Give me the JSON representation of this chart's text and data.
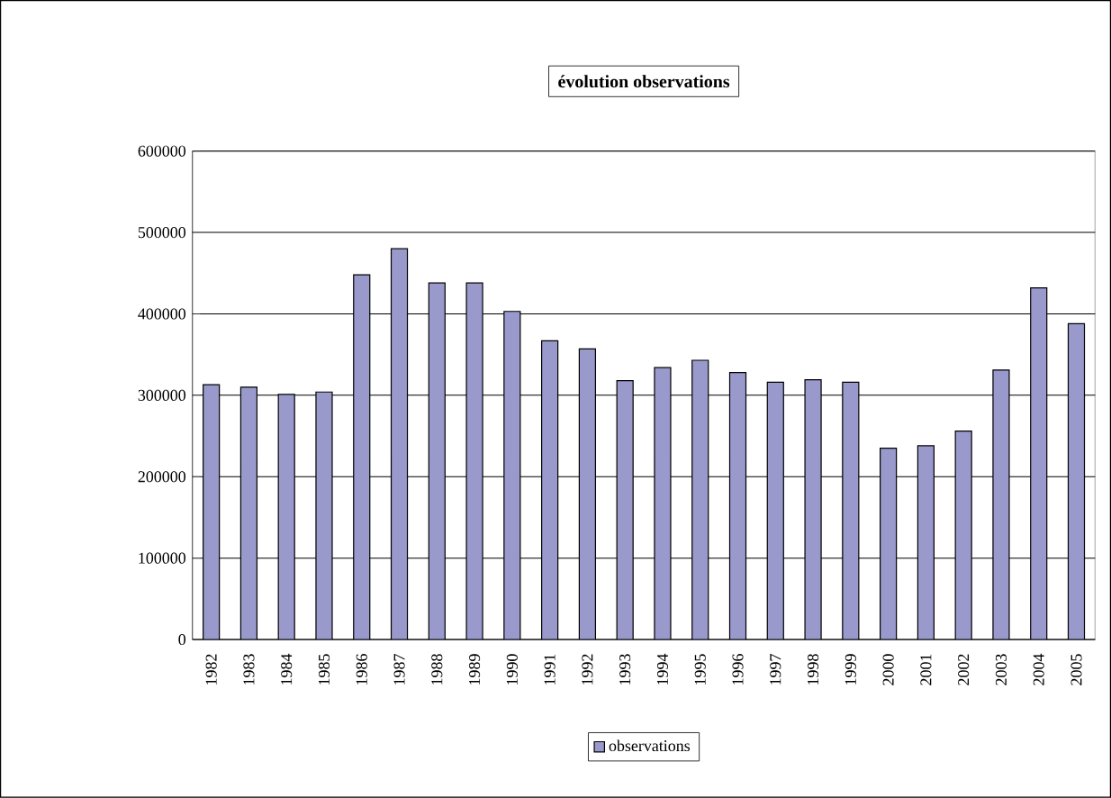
{
  "chart_data": {
    "type": "bar",
    "title": "évolution observations",
    "categories": [
      "1982",
      "1983",
      "1984",
      "1985",
      "1986",
      "1987",
      "1988",
      "1989",
      "1990",
      "1991",
      "1992",
      "1993",
      "1994",
      "1995",
      "1996",
      "1997",
      "1998",
      "1999",
      "2000",
      "2001",
      "2002",
      "2003",
      "2004",
      "2005"
    ],
    "series": [
      {
        "name": "observations",
        "color": "#9999cc",
        "values": [
          313000,
          310000,
          301000,
          304000,
          448000,
          480000,
          438000,
          438000,
          403000,
          367000,
          357000,
          318000,
          334000,
          343000,
          328000,
          316000,
          319000,
          316000,
          235000,
          238000,
          256000,
          331000,
          432000,
          388000
        ]
      }
    ],
    "ylim": [
      0,
      600000
    ],
    "yticks": [
      0,
      100000,
      200000,
      300000,
      400000,
      500000,
      600000
    ],
    "grid": "y",
    "legend": "bottom"
  }
}
